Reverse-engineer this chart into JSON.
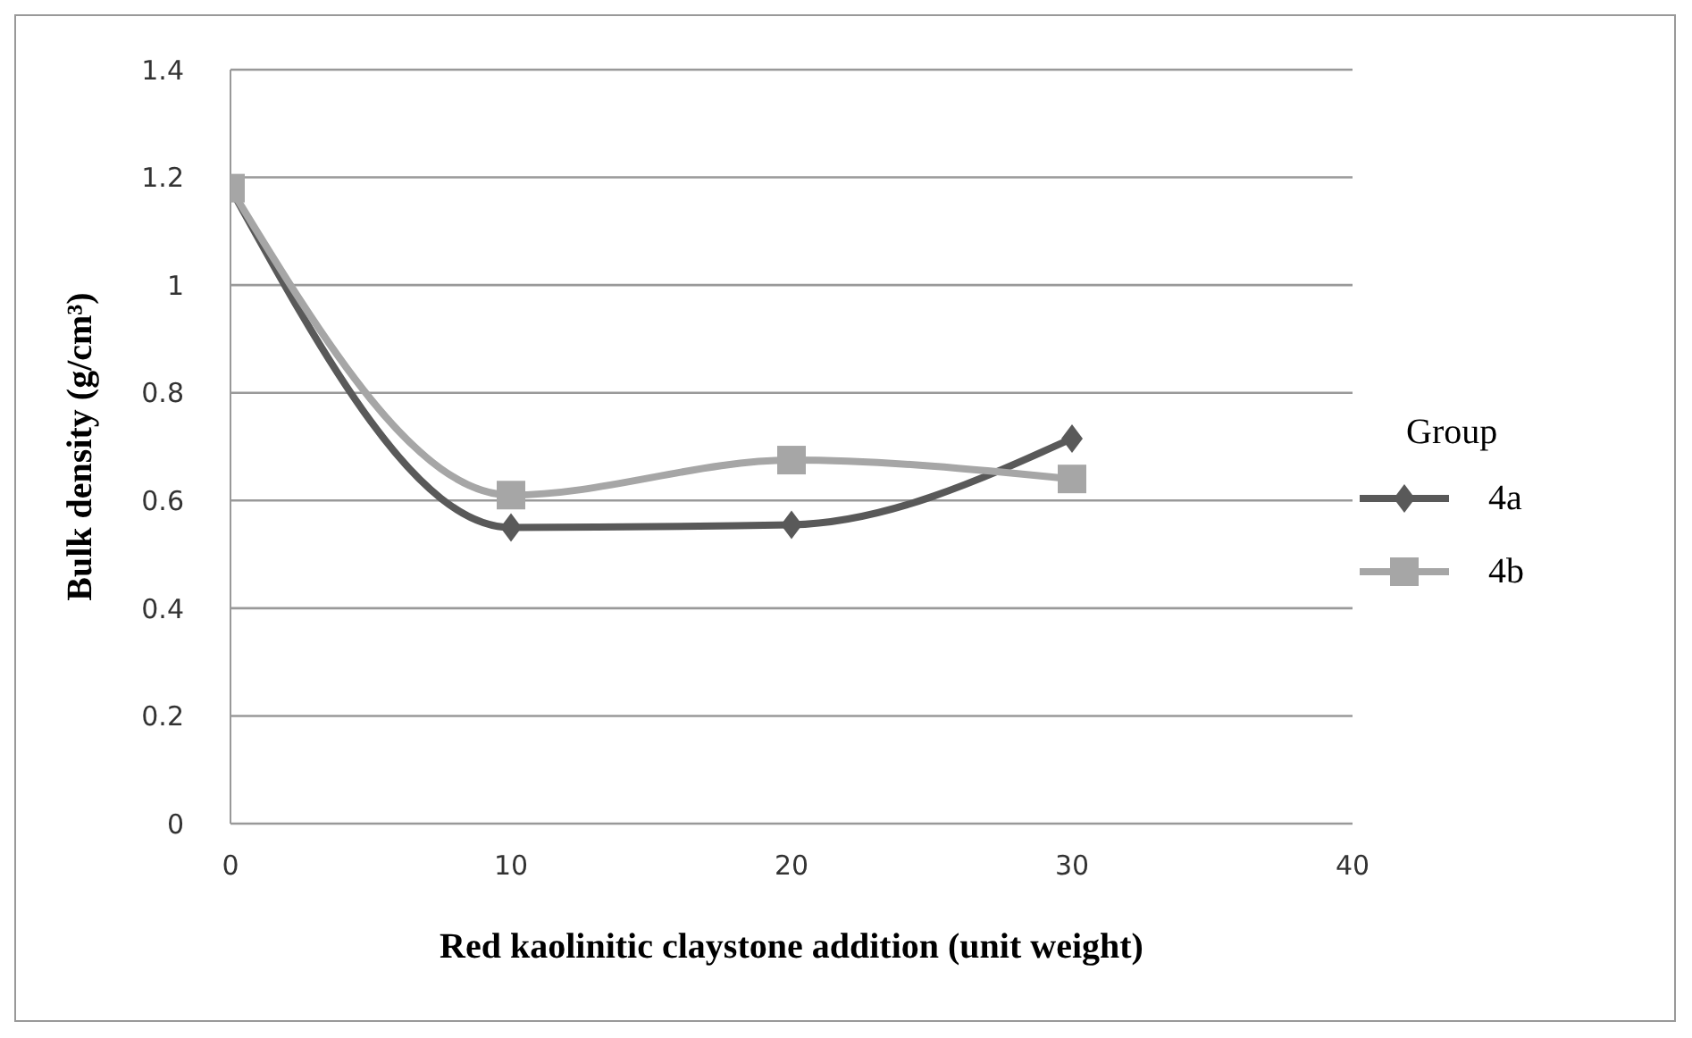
{
  "chart_data": {
    "type": "line",
    "xlabel": "Red kaolinitic claystone addition (unit weight)",
    "ylabel": "Bulk density (g/cm³)",
    "legend_title": "Group",
    "x": [
      0,
      10,
      20,
      30
    ],
    "series": [
      {
        "name": "4a",
        "color": "#595959",
        "values": [
          1.18,
          0.55,
          0.555,
          0.715
        ],
        "marker": "diamond"
      },
      {
        "name": "4b",
        "color": "#a6a6a6",
        "values": [
          1.18,
          0.61,
          0.675,
          0.64
        ],
        "marker": "square"
      }
    ],
    "xlim": [
      0,
      40
    ],
    "xticks": [
      0,
      10,
      20,
      30,
      40
    ],
    "ylim": [
      0,
      1.4
    ],
    "yticks": [
      0,
      0.2,
      0.4,
      0.6,
      0.8,
      1,
      1.2,
      1.4
    ],
    "grid": "y",
    "legend": "right",
    "line_style": "solid"
  }
}
